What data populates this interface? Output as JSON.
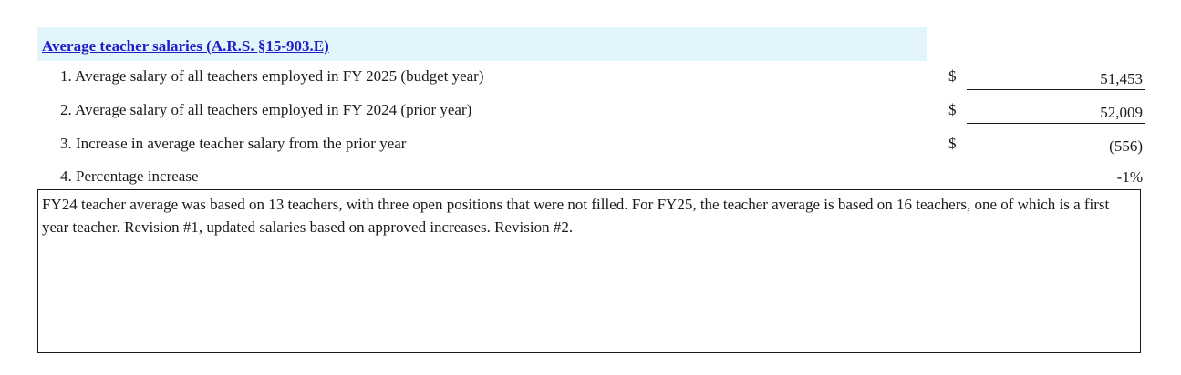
{
  "section": {
    "title": "Average teacher salaries (A.R.S. §15-903.E)"
  },
  "rows": [
    {
      "label": "1. Average salary of all teachers employed in FY 2025 (budget year)",
      "currency": "$",
      "value": "51,453"
    },
    {
      "label": "2. Average salary of all teachers employed in FY 2024 (prior year)",
      "currency": "$",
      "value": "52,009"
    },
    {
      "label": "3. Increase in average teacher salary from the prior year",
      "currency": "$",
      "value": "(556)"
    },
    {
      "label": "4. Percentage increase",
      "currency": "",
      "value": "-1%"
    }
  ],
  "comment": {
    "text": "FY24 teacher average was based on 13 teachers, with three open positions that were not filled.  For FY25, the teacher average is based on 16 teachers, one of which is a first year teacher.  Revision #1, updated salaries based on approved increases.  Revision #2."
  },
  "colors": {
    "header_band": "#e1f5fa",
    "title_link": "#1e1ec8"
  }
}
